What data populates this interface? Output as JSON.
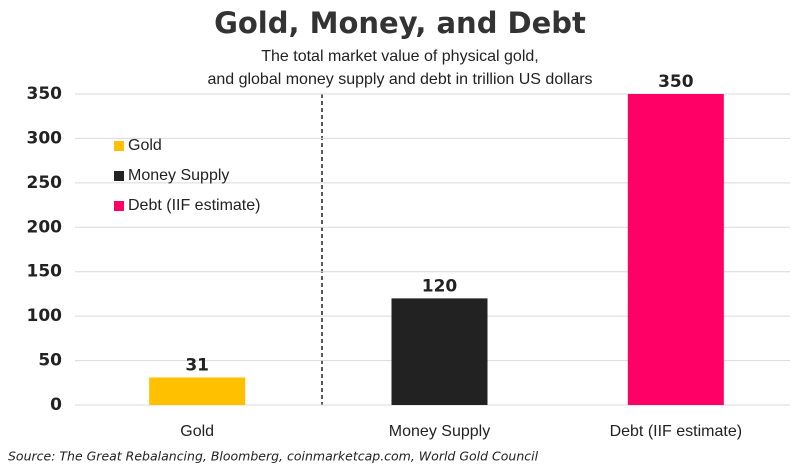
{
  "chart_data": {
    "type": "bar",
    "title": "Gold, Money, and Debt",
    "subtitle": [
      "The total market value of physical gold,",
      "and global money supply and debt in trillion US dollars"
    ],
    "categories": [
      "Gold",
      "Money Supply",
      "Debt (IIF estimate)"
    ],
    "values": [
      31,
      120,
      350
    ],
    "colors": [
      "#ffc000",
      "#222222",
      "#ff0066"
    ],
    "ylim": [
      0,
      350
    ],
    "yticks": [
      0,
      50,
      100,
      150,
      200,
      250,
      300,
      350
    ],
    "grid": true,
    "legend": "top-left",
    "source": "Source: The Great Rebalancing, Bloomberg, coinmarketcap.com, World Gold Council"
  }
}
